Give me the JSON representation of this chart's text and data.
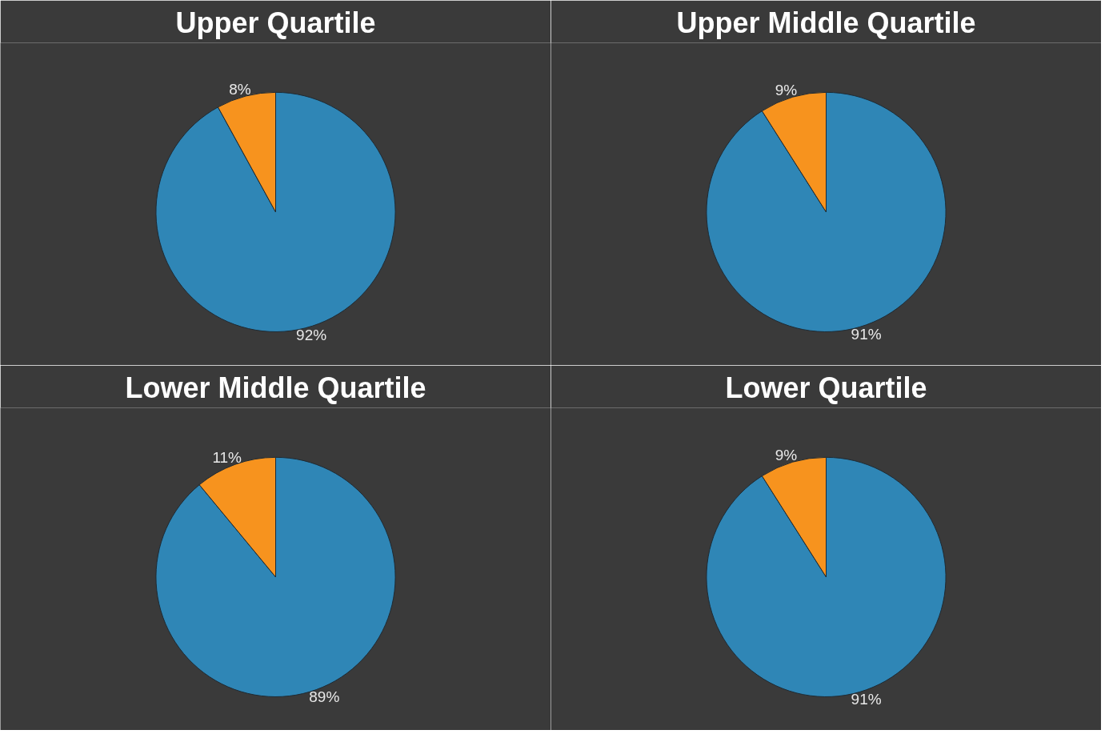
{
  "chart_data": [
    {
      "type": "pie",
      "title": "Upper Quartile",
      "categories": [
        null,
        null
      ],
      "values": [
        92,
        8
      ],
      "colors": [
        "#2f86b6",
        "#f7931e"
      ],
      "value_labels": [
        "92%",
        "8%"
      ]
    },
    {
      "type": "pie",
      "title": "Upper Middle Quartile",
      "categories": [
        null,
        null
      ],
      "values": [
        91,
        9
      ],
      "colors": [
        "#2f86b6",
        "#f7931e"
      ],
      "value_labels": [
        "91%",
        "9%"
      ]
    },
    {
      "type": "pie",
      "title": "Lower Middle Quartile",
      "categories": [
        null,
        null
      ],
      "values": [
        89,
        11
      ],
      "colors": [
        "#2f86b6",
        "#f7931e"
      ],
      "value_labels": [
        "89%",
        "11%"
      ]
    },
    {
      "type": "pie",
      "title": "Lower Quartile",
      "categories": [
        null,
        null
      ],
      "values": [
        91,
        9
      ],
      "colors": [
        "#2f86b6",
        "#f7931e"
      ],
      "value_labels": [
        "91%",
        "9%"
      ]
    }
  ]
}
